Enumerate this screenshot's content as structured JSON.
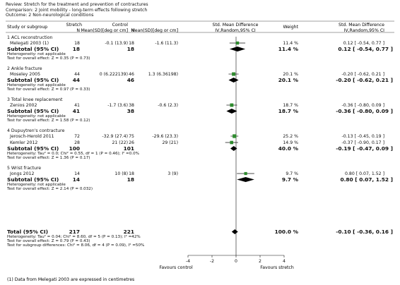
{
  "header": {
    "review": "Review:  Stretch for the treatment and prevention of contractures",
    "comparison": "Comparison:  2 Joint mobility - long-term effects following stretch",
    "outcome": "Outcome:  2 Non-neurological conditions"
  },
  "columns": {
    "study": "Study or subgroup",
    "stretch_group": "Stretch",
    "stretch_n": "N",
    "stretch_mean": "Mean(SD)[deg or cm]",
    "control_group": "Control",
    "control_n": "N",
    "control_mean": "Mean(SD)[deg or cm]",
    "smd_plot_1": "Std. Mean Difference",
    "smd_plot_2": "IV,Random,95% CI",
    "weight": "Weight",
    "smd_text_1": "Std. Mean Difference",
    "smd_text_2": "IV,Random,95% CI"
  },
  "chart_data": {
    "type": "forest",
    "axis": {
      "min": -4,
      "max": 4,
      "ticks": [
        "-4",
        "-2",
        "0",
        "2",
        "4"
      ]
    },
    "favours_left": "Favours control",
    "favours_right": "Favours stretch",
    "subgroups": [
      {
        "name": "1 ACL reconstruction",
        "studies": [
          {
            "name": "Melegati 2003 (1)",
            "n1": "18",
            "m1": "-0.1 (13.9)",
            "n2": "18",
            "m2": "-1.6 (11.3)",
            "weight": "11.4 %",
            "ci_text": "0.12 [ -0.54, 0.77 ]",
            "est": 0.12,
            "lo": -0.54,
            "hi": 0.77,
            "w": 11.4
          }
        ],
        "subtotal": {
          "label": "Subtotal (95% CI)",
          "n1": "18",
          "n2": "18",
          "weight": "11.4 %",
          "ci_text": "0.12 [ -0.54, 0.77 ]",
          "est": 0.12,
          "lo": -0.54,
          "hi": 0.77
        },
        "hetero": "Heterogeneity: not applicable",
        "effect": "Test for overall effect: Z = 0.35 (P = 0.73)"
      },
      {
        "name": "2 Ankle fracture",
        "studies": [
          {
            "name": "Moseley 2005",
            "n1": "44",
            "m1": "0 (6.222139)",
            "n2": "46",
            "m2": "1.3 (6.36198)",
            "weight": "20.1 %",
            "ci_text": "-0.20 [ -0.62, 0.21 ]",
            "est": -0.2,
            "lo": -0.62,
            "hi": 0.21,
            "w": 20.1
          }
        ],
        "subtotal": {
          "label": "Subtotal (95% CI)",
          "n1": "44",
          "n2": "46",
          "weight": "20.1 %",
          "ci_text": "-0.20 [ -0.62, 0.21 ]",
          "est": -0.2,
          "lo": -0.62,
          "hi": 0.21
        },
        "hetero": "Heterogeneity: not applicable",
        "effect": "Test for overall effect: Z = 0.97 (P = 0.33)"
      },
      {
        "name": "3 Total knee replacement",
        "studies": [
          {
            "name": "Zenios 2002",
            "n1": "41",
            "m1": "-1.7 (3.6)",
            "n2": "38",
            "m2": "-0.6 (2.3)",
            "weight": "18.7 %",
            "ci_text": "-0.36 [ -0.80, 0.09 ]",
            "est": -0.36,
            "lo": -0.8,
            "hi": 0.09,
            "w": 18.7
          }
        ],
        "subtotal": {
          "label": "Subtotal (95% CI)",
          "n1": "41",
          "n2": "38",
          "weight": "18.7 %",
          "ci_text": "-0.36 [ -0.80, 0.09 ]",
          "est": -0.36,
          "lo": -0.8,
          "hi": 0.09
        },
        "hetero": "Heterogeneity: not applicable",
        "effect": "Test for overall effect: Z = 1.58 (P = 0.12)"
      },
      {
        "name": "4 Dupuytren's contracture",
        "studies": [
          {
            "name": "Jerosch-Herold 2011",
            "n1": "72",
            "m1": "-32.9 (27.4)",
            "n2": "75",
            "m2": "-29.6 (23.3)",
            "weight": "25.2 %",
            "ci_text": "-0.13 [ -0.45, 0.19 ]",
            "est": -0.13,
            "lo": -0.45,
            "hi": 0.19,
            "w": 25.2
          },
          {
            "name": "Kemler 2012",
            "n1": "28",
            "m1": "21 (22)",
            "n2": "26",
            "m2": "29 (21)",
            "weight": "14.9 %",
            "ci_text": "-0.37 [ -0.90, 0.17 ]",
            "est": -0.37,
            "lo": -0.9,
            "hi": 0.17,
            "w": 14.9
          }
        ],
        "subtotal": {
          "label": "Subtotal (95% CI)",
          "n1": "100",
          "n2": "101",
          "weight": "40.0 %",
          "ci_text": "-0.19 [ -0.47, 0.09 ]",
          "est": -0.19,
          "lo": -0.47,
          "hi": 0.09
        },
        "hetero": "Heterogeneity: Tau² = 0.0; Chi² = 0.55, df = 1 (P = 0.46); I² =0.0%",
        "effect": "Test for overall effect: Z = 1.36 (P = 0.17)"
      },
      {
        "name": "5 Wrist fracture",
        "studies": [
          {
            "name": "Jongs 2012",
            "n1": "14",
            "m1": "10 (8)",
            "n2": "18",
            "m2": "3 (9)",
            "weight": "9.7 %",
            "ci_text": "0.80 [ 0.07, 1.52 ]",
            "est": 0.8,
            "lo": 0.07,
            "hi": 1.52,
            "w": 9.7
          }
        ],
        "subtotal": {
          "label": "Subtotal (95% CI)",
          "n1": "14",
          "n2": "18",
          "weight": "9.7 %",
          "ci_text": "0.80 [ 0.07, 1.52 ]",
          "est": 0.8,
          "lo": 0.07,
          "hi": 1.52
        },
        "hetero": "Heterogeneity: not applicable",
        "effect": "Test for overall effect: Z = 2.14 (P = 0.032)"
      }
    ],
    "total": {
      "label": "Total (95% CI)",
      "n1": "217",
      "n2": "221",
      "weight": "100.0 %",
      "ci_text": "-0.10 [ -0.36, 0.16 ]",
      "est": -0.1,
      "lo": -0.36,
      "hi": 0.16,
      "hetero": "Heterogeneity: Tau² = 0.04; Chi² = 8.60, df = 5 (P = 0.13); I² =42%",
      "effect": "Test for overall effect: Z = 0.79 (P = 0.43)",
      "subgroup": "Test for subgroup differences: Chi² = 8.06, df = 4 (P = 0.09), I² =50%"
    },
    "footnote": "(1) Data from Melegati 2003 are expressed in centimetres",
    "colors": {
      "study_marker": "#2e8b2e",
      "pooled_diamond": "#000000",
      "ink": "#111111"
    }
  }
}
